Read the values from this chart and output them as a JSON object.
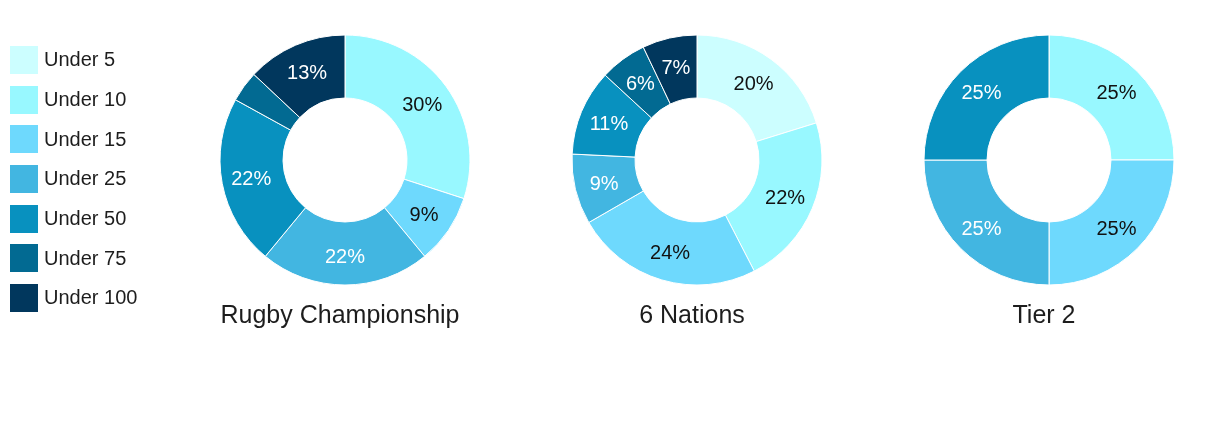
{
  "chart_data": {
    "type": "donut",
    "legend": "left",
    "categories": [
      "Under 5",
      "Under 10",
      "Under 15",
      "Under 25",
      "Under 50",
      "Under 75",
      "Under 100"
    ],
    "colors": [
      "#ccfeff",
      "#98f8ff",
      "#6ed9fd",
      "#42b6e1",
      "#0891bf",
      "#026a92",
      "#01375d"
    ],
    "series": [
      {
        "name": "Rugby Championship",
        "values": [
          0,
          30,
          9,
          22,
          22,
          4,
          13
        ],
        "value_labels": [
          null,
          "30%",
          "9%",
          "22%",
          "22%",
          null,
          "13%"
        ]
      },
      {
        "name": "6 Nations",
        "values": [
          20,
          22,
          24,
          9,
          11,
          6,
          7
        ],
        "value_labels": [
          "20%",
          "22%",
          "24%",
          "9%",
          "11%",
          "6%",
          "7%"
        ]
      },
      {
        "name": "Tier 2",
        "values": [
          0,
          25,
          25,
          25,
          25,
          0,
          0
        ],
        "value_labels": [
          null,
          "25%",
          "25%",
          "25%",
          "25%",
          null,
          null
        ]
      }
    ]
  }
}
